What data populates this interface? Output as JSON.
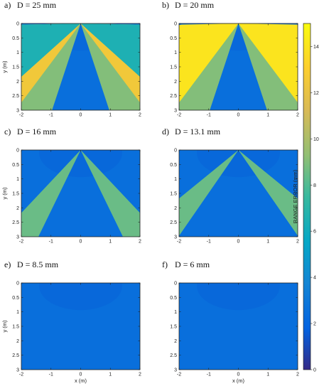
{
  "chart_data": {
    "type": "heatmap",
    "colormap": "parula",
    "panels": [
      {
        "id": "a",
        "label": "a)",
        "title": "D = 25 mm",
        "fan_edge_y": 0.5,
        "cone_half_angle_deg": 27,
        "cone_width": 0.32,
        "cone_value": 9.0,
        "outer_value": 12.5,
        "outer_fill": "partial"
      },
      {
        "id": "b",
        "label": "b)",
        "title": "D = 20 mm",
        "fan_edge_y": 0.6,
        "cone_half_angle_deg": 27,
        "cone_width": 0.32,
        "cone_value": 9.0,
        "outer_value": 14.0,
        "outer_fill": "full"
      },
      {
        "id": "c",
        "label": "c)",
        "title": "D = 16 mm",
        "fan_edge_y": 0.0,
        "cone_half_angle_deg": 34,
        "cone_width": 0.3,
        "cone_value": 8.5,
        "outer_value": 2.5,
        "outer_fill": "none"
      },
      {
        "id": "d",
        "label": "d)",
        "title": "D = 13.1 mm",
        "fan_edge_y": 0.0,
        "cone_half_angle_deg": 42,
        "cone_width": 0.28,
        "cone_value": 8.5,
        "outer_value": 2.5,
        "outer_fill": "none"
      },
      {
        "id": "e",
        "label": "e)",
        "title": "D = 8.5 mm",
        "fan_edge_y": 0.0,
        "cone_half_angle_deg": 0,
        "cone_width": 0.0,
        "cone_value": 2.5,
        "outer_value": 2.5,
        "outer_fill": "none"
      },
      {
        "id": "f",
        "label": "f)",
        "title": "D = 6 mm",
        "fan_edge_y": 0.0,
        "cone_half_angle_deg": 0,
        "cone_width": 0.0,
        "cone_value": 2.5,
        "outer_value": 2.5,
        "outer_fill": "none"
      }
    ],
    "background_value": 2.5,
    "x_ticks": [
      -2,
      -1,
      0,
      1,
      2
    ],
    "y_ticks": [
      0,
      0.5,
      1,
      1.5,
      2,
      2.5,
      3
    ],
    "xlim": [
      -2,
      2
    ],
    "ylim": [
      0,
      3
    ],
    "xlabel": "x (m)",
    "ylabel": "y (m)",
    "colorbar": {
      "label": "RANGE ERROR (mm)",
      "ticks": [
        0,
        2,
        4,
        6,
        8,
        10,
        12,
        14
      ],
      "range": [
        0,
        15
      ]
    }
  }
}
